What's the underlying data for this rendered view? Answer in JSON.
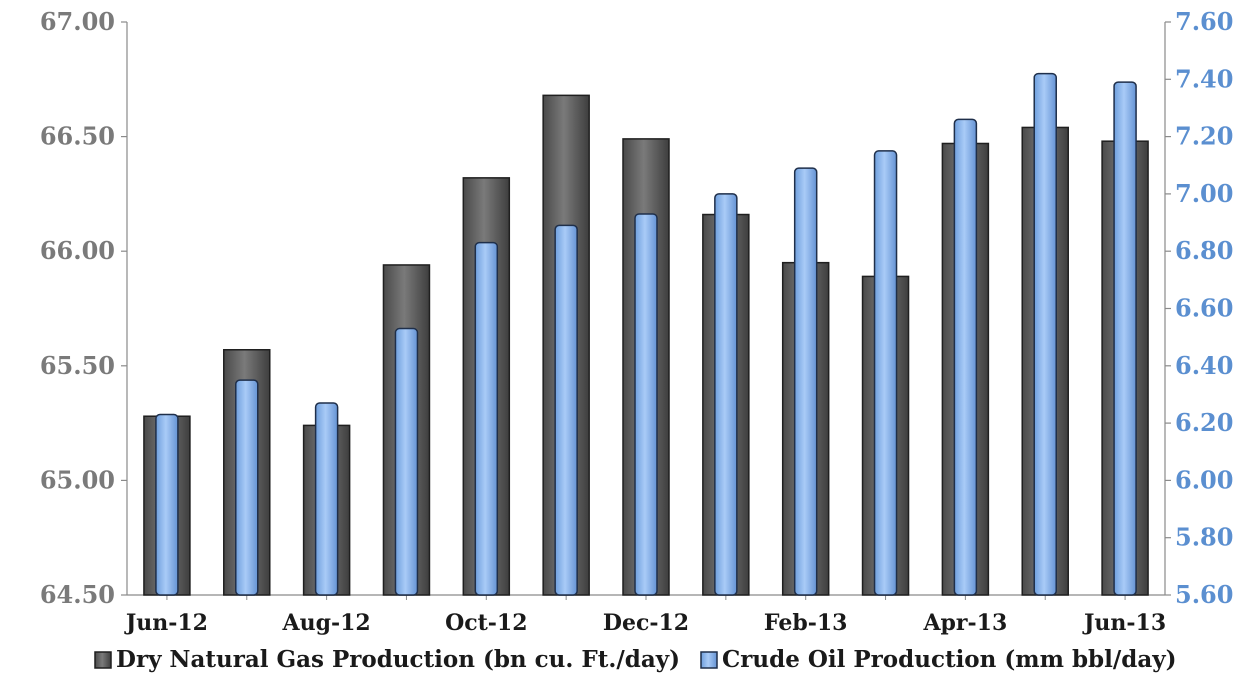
{
  "chart_data": {
    "type": "bar",
    "categories": [
      "Jun-12",
      "Jul-12",
      "Aug-12",
      "Sep-12",
      "Oct-12",
      "Nov-12",
      "Dec-12",
      "Jan-13",
      "Feb-13",
      "Mar-13",
      "Apr-13",
      "May-13",
      "Jun-13"
    ],
    "x_tick_labels": [
      "Jun-12",
      "",
      "Aug-12",
      "",
      "Oct-12",
      "",
      "Dec-12",
      "",
      "Feb-13",
      "",
      "Apr-13",
      "",
      "Jun-13"
    ],
    "series": [
      {
        "name": "Dry Natural Gas Production (bn cu. Ft./day)",
        "axis": "left",
        "color": "#5f5f5f",
        "values": [
          65.28,
          65.57,
          65.24,
          65.94,
          66.32,
          66.68,
          66.49,
          66.16,
          65.95,
          65.89,
          66.47,
          66.54,
          66.48
        ]
      },
      {
        "name": "Crude Oil Production (mm bbl/day)",
        "axis": "right",
        "color": "#8cb6f0",
        "values": [
          6.23,
          6.35,
          6.27,
          6.53,
          6.83,
          6.89,
          6.93,
          7.0,
          7.09,
          7.15,
          7.26,
          7.42,
          7.39
        ]
      }
    ],
    "y_left": {
      "ylim": [
        64.5,
        67.0
      ],
      "ticks": [
        "64.50",
        "65.00",
        "65.50",
        "66.00",
        "66.50",
        "67.00"
      ]
    },
    "y_right": {
      "ylim": [
        5.6,
        7.6
      ],
      "ticks": [
        "5.60",
        "5.80",
        "6.00",
        "6.20",
        "6.40",
        "6.60",
        "6.80",
        "7.00",
        "7.20",
        "7.40",
        "7.60"
      ]
    },
    "legend": {
      "position": "bottom"
    },
    "grid": false
  }
}
